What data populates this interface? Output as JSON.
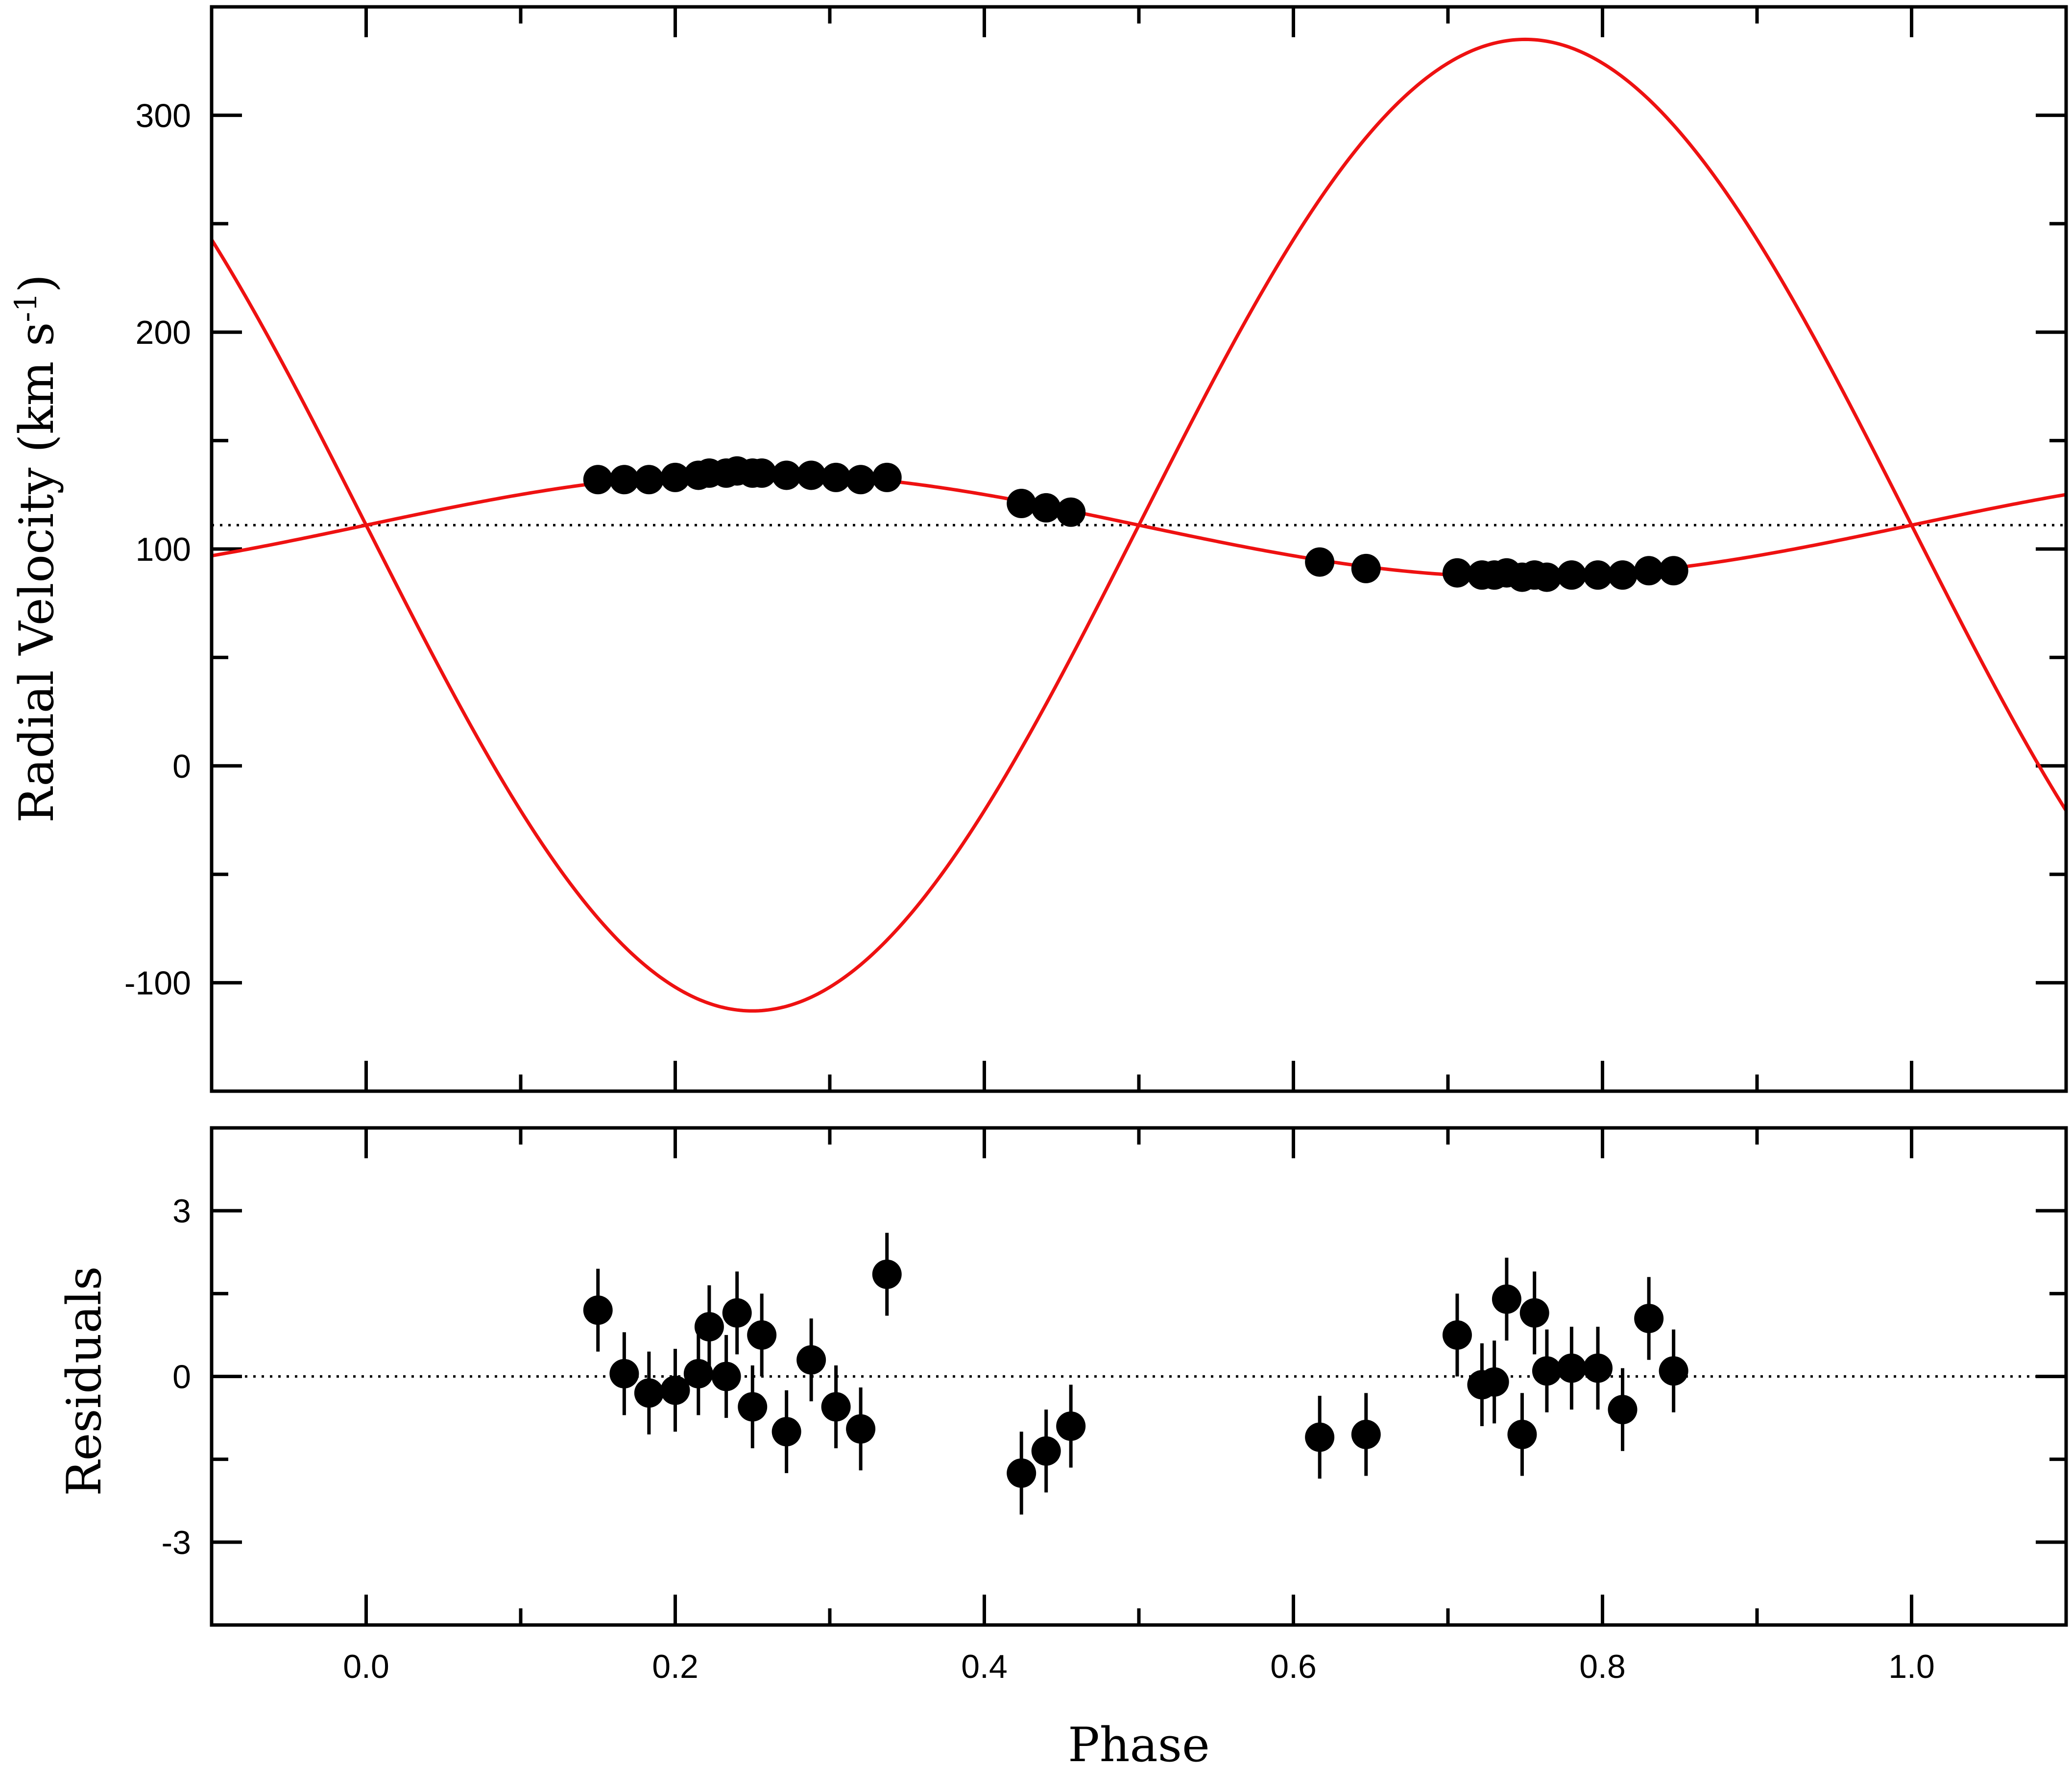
{
  "chart_data": [
    {
      "type": "line",
      "panel": "radial-velocity",
      "xlabel": "",
      "ylabel_main": "Radial Velocity (km s",
      "ylabel_sup": "-1",
      "ylabel_close": ")",
      "xlim": [
        -0.1,
        1.1
      ],
      "ylim": [
        -150,
        350
      ],
      "yticks": [
        -100,
        0,
        100,
        200,
        300
      ],
      "yticks_minor": [
        -50,
        50,
        150,
        250
      ],
      "ytick_labels": [
        "-100",
        "0",
        "100",
        "200",
        "300"
      ],
      "xticks": [
        0.0,
        0.2,
        0.4,
        0.6,
        0.8,
        1.0
      ],
      "xticks_minor": [
        -0.1,
        0.1,
        0.3,
        0.5,
        0.7,
        0.9,
        1.1
      ],
      "systemic_velocity": 111,
      "grid": false,
      "series": [
        {
          "model": "primary",
          "gamma": 111,
          "K": 24,
          "sign": 1,
          "x": [
            0.15,
            0.167,
            0.183,
            0.2,
            0.215,
            0.222,
            0.233,
            0.24,
            0.25,
            0.256,
            0.272,
            0.288,
            0.304,
            0.32,
            0.337,
            0.424,
            0.44,
            0.456,
            0.617,
            0.647,
            0.706,
            0.722,
            0.73,
            0.738,
            0.748,
            0.756,
            0.764,
            0.78,
            0.797,
            0.813,
            0.83,
            0.846
          ],
          "y": [
            132,
            132,
            132,
            133,
            134,
            135,
            135,
            136,
            135,
            135,
            134,
            134,
            133,
            132,
            133,
            121,
            119,
            117,
            94,
            91,
            89,
            88,
            88,
            89,
            87,
            88,
            87,
            88,
            88,
            88,
            90,
            90
          ]
        },
        {
          "model": "secondary",
          "gamma": 111,
          "K": 224,
          "sign": -1
        }
      ]
    },
    {
      "type": "scatter",
      "panel": "residuals",
      "xlabel": "Phase",
      "ylabel": "Residuals",
      "xlim": [
        -0.1,
        1.1
      ],
      "ylim": [
        -4.5,
        4.5
      ],
      "yticks": [
        -3,
        0,
        3
      ],
      "yticks_minor": [
        -4.5,
        -1.5,
        1.5,
        4.5
      ],
      "ytick_labels": [
        "-3",
        "0",
        "3"
      ],
      "xticks": [
        0.0,
        0.2,
        0.4,
        0.6,
        0.8,
        1.0
      ],
      "xticks_minor": [
        -0.1,
        0.1,
        0.3,
        0.5,
        0.7,
        0.9,
        1.1
      ],
      "xtick_labels": [
        "0.0",
        "0.2",
        "0.4",
        "0.6",
        "0.8",
        "1.0"
      ],
      "zero_line": 0,
      "grid": false,
      "series": [
        {
          "x": [
            0.15,
            0.167,
            0.183,
            0.2,
            0.215,
            0.222,
            0.233,
            0.24,
            0.25,
            0.256,
            0.272,
            0.288,
            0.304,
            0.32,
            0.337,
            0.424,
            0.44,
            0.456,
            0.617,
            0.647,
            0.706,
            0.722,
            0.73,
            0.738,
            0.748,
            0.756,
            0.764,
            0.78,
            0.797,
            0.813,
            0.83,
            0.846
          ],
          "y": [
            1.2,
            0.05,
            -0.3,
            -0.25,
            0.05,
            0.9,
            0.0,
            1.15,
            -0.55,
            0.75,
            -1.0,
            0.3,
            -0.55,
            -0.95,
            1.85,
            -1.75,
            -1.35,
            -0.9,
            -1.1,
            -1.05,
            0.75,
            -0.15,
            -0.1,
            1.4,
            -1.05,
            1.15,
            0.1,
            0.15,
            0.15,
            -0.6,
            1.05,
            0.1
          ],
          "err": [
            0.75,
            0.75,
            0.75,
            0.75,
            0.75,
            0.75,
            0.75,
            0.75,
            0.75,
            0.75,
            0.75,
            0.75,
            0.75,
            0.75,
            0.75,
            0.75,
            0.75,
            0.75,
            0.75,
            0.75,
            0.75,
            0.75,
            0.75,
            0.75,
            0.75,
            0.75,
            0.75,
            0.75,
            0.75,
            0.75,
            0.75,
            0.75
          ]
        }
      ]
    }
  ],
  "colors": {
    "model_curve": "#ee1111",
    "points": "#000000",
    "frame": "#000000"
  }
}
